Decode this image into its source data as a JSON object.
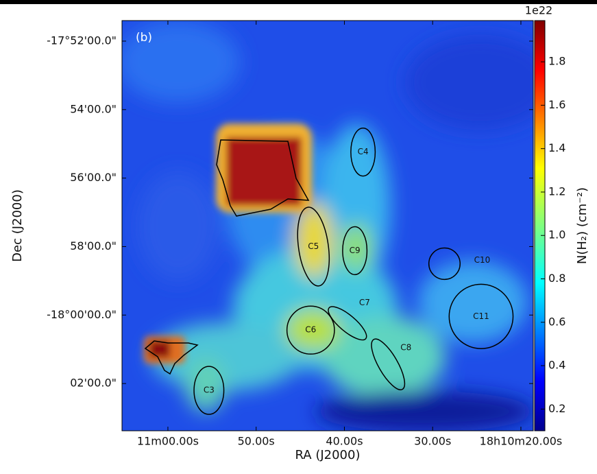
{
  "chart_data": {
    "type": "image",
    "title": "(b)",
    "xlabel": "RA (J2000)",
    "ylabel": "Dec (J2000)",
    "xlim": [
      665.2,
      618.6
    ],
    "xticks": [
      {
        "value": 660,
        "label": "11m00.00s"
      },
      {
        "value": 650,
        "label": "50.00s"
      },
      {
        "value": 640,
        "label": "40.00s"
      },
      {
        "value": 630,
        "label": "30.00s"
      },
      {
        "value": 620,
        "label": "18h10m20.00s"
      }
    ],
    "ylim": [
      -1071.4,
      -1083.38
    ],
    "yticks": [
      {
        "value": -1072,
        "label": "-17°52'00.0\""
      },
      {
        "value": -1074,
        "label": "54'00.0\""
      },
      {
        "value": -1076,
        "label": "56'00.0\""
      },
      {
        "value": -1078,
        "label": "58'00.0\""
      },
      {
        "value": -1080,
        "label": "-18°00'00.0\""
      },
      {
        "value": -1082,
        "label": "02'00.0\""
      }
    ],
    "colorbar": {
      "label": "N(H₂) (cm⁻²)",
      "offset": "1e22",
      "colormap": "jet",
      "lim": [
        0.1,
        1.99
      ],
      "ticks": [
        0.2,
        0.4,
        0.6,
        0.8,
        {
          "value": 1.0,
          "label": "1.0"
        },
        1.2,
        1.4,
        1.6,
        1.8
      ]
    },
    "cores": [
      {
        "name": "C3",
        "ra": 655.35,
        "dec": -1082.2,
        "rx": 1.69,
        "ry": 0.7,
        "angle": 0
      },
      {
        "name": "C4",
        "ra": 637.89,
        "dec": -1075.24,
        "rx": 1.38,
        "ry": 0.7,
        "angle": 0
      },
      {
        "name": "C5",
        "ra": 643.51,
        "dec": -1078.0,
        "rx": 1.69,
        "ry": 1.16,
        "angle": -8
      },
      {
        "name": "C6",
        "ra": 643.82,
        "dec": -1080.44,
        "rx": 2.69,
        "ry": 0.7,
        "angle": 0
      },
      {
        "name": "C7",
        "ra": 639.66,
        "dec": -1080.24,
        "rx": 0.92,
        "ry": 0.7,
        "angle": -50
      },
      {
        "name": "C8",
        "ra": 635.05,
        "dec": -1081.44,
        "rx": 1.08,
        "ry": 0.84,
        "angle": -30
      },
      {
        "name": "C9",
        "ra": 638.82,
        "dec": -1078.12,
        "rx": 1.38,
        "ry": 0.7,
        "angle": 0
      },
      {
        "name": "C10",
        "ra": 628.66,
        "dec": -1078.5,
        "rx": 1.77,
        "ry": 0.46,
        "angle": 0
      },
      {
        "name": "C11",
        "ra": 624.51,
        "dec": -1080.04,
        "rx": 3.62,
        "ry": 0.94,
        "angle": 0
      }
    ]
  }
}
